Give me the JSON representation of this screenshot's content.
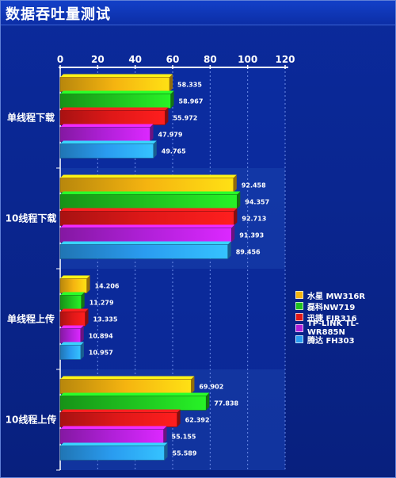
{
  "header": {
    "title": "数据吞吐量测试"
  },
  "chart_data": {
    "type": "bar",
    "orientation": "horizontal",
    "categories": [
      "单线程下载",
      "10线程下载",
      "单线程上传",
      "10线程上传"
    ],
    "xlim": [
      0,
      120
    ],
    "xticks": [
      0,
      20,
      40,
      60,
      80,
      100,
      120
    ],
    "grid": true,
    "legend_position": "right",
    "series": [
      {
        "name": "水星 MW316R",
        "color": "#f5b410",
        "values": [
          58.335,
          92.458,
          14.206,
          69.902
        ]
      },
      {
        "name": "磊科NW719",
        "color": "#1fc21f",
        "values": [
          58.967,
          94.357,
          11.279,
          77.838
        ]
      },
      {
        "name": "迅捷 FIR316",
        "color": "#e01818",
        "values": [
          55.972,
          92.713,
          13.335,
          62.392
        ]
      },
      {
        "name": "TP-LINK TL-WR885N",
        "color": "#b020d8",
        "values": [
          47.979,
          91.393,
          10.894,
          55.155
        ]
      },
      {
        "name": "腾达 FH303",
        "color": "#2a9cf0",
        "values": [
          49.765,
          89.456,
          10.957,
          55.589
        ]
      }
    ],
    "value_labels": [
      [
        "58.335",
        "58.967",
        "55.972",
        "47.979",
        "49.765"
      ],
      [
        "92.458",
        "94.357",
        "92.713",
        "91.393",
        "89.456"
      ],
      [
        "14.206",
        "11.279",
        "13.335",
        "10.894",
        "10.957"
      ],
      [
        "69.902",
        "77.838",
        "62.392",
        "55.155",
        "55.589"
      ]
    ]
  }
}
